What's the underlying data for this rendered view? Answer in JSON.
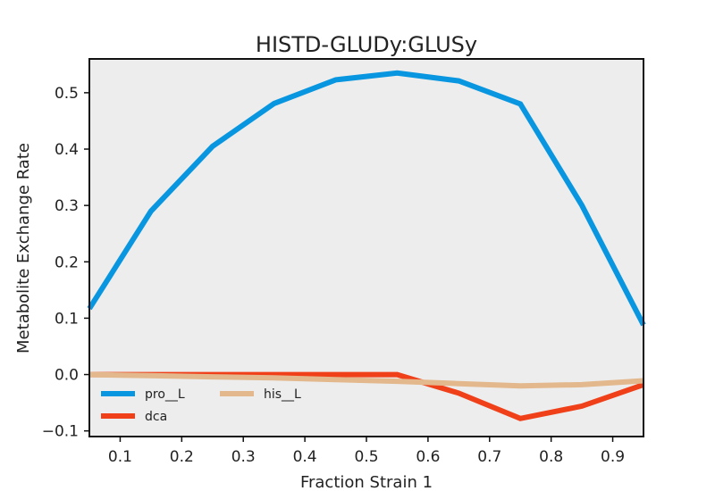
{
  "chart_data": {
    "type": "line",
    "title": "HISTD-GLUDy:GLUSy",
    "xlabel": "Fraction Strain 1",
    "ylabel": "Metabolite Exchange Rate",
    "xlim": [
      0.05,
      0.95
    ],
    "ylim": [
      -0.11,
      0.56
    ],
    "xticks": [
      "0.1",
      "0.2",
      "0.3",
      "0.4",
      "0.5",
      "0.6",
      "0.7",
      "0.8",
      "0.9"
    ],
    "yticks": [
      "−0.1",
      "0.0",
      "0.1",
      "0.2",
      "0.3",
      "0.4",
      "0.5"
    ],
    "background": "#ededed",
    "grid": false,
    "legend_position": "lower-left",
    "series": [
      {
        "name": "pro__L",
        "color": "#0896e0",
        "x": [
          0.05,
          0.15,
          0.25,
          0.35,
          0.45,
          0.55,
          0.65,
          0.75,
          0.85,
          0.95
        ],
        "y": [
          0.117,
          0.29,
          0.405,
          0.481,
          0.523,
          0.535,
          0.521,
          0.48,
          0.3,
          0.088
        ]
      },
      {
        "name": "dca",
        "color": "#f0401a",
        "x": [
          0.05,
          0.15,
          0.25,
          0.35,
          0.45,
          0.55,
          0.65,
          0.75,
          0.85,
          0.95
        ],
        "y": [
          0.0,
          0.0,
          0.0,
          0.0,
          0.0,
          0.0,
          -0.033,
          -0.078,
          -0.056,
          -0.018
        ]
      },
      {
        "name": "his__L",
        "color": "#e3b88c",
        "x": [
          0.05,
          0.15,
          0.25,
          0.35,
          0.45,
          0.55,
          0.65,
          0.75,
          0.85,
          0.95
        ],
        "y": [
          0.0,
          -0.002,
          -0.004,
          -0.006,
          -0.009,
          -0.012,
          -0.016,
          -0.02,
          -0.018,
          -0.011
        ]
      }
    ]
  }
}
